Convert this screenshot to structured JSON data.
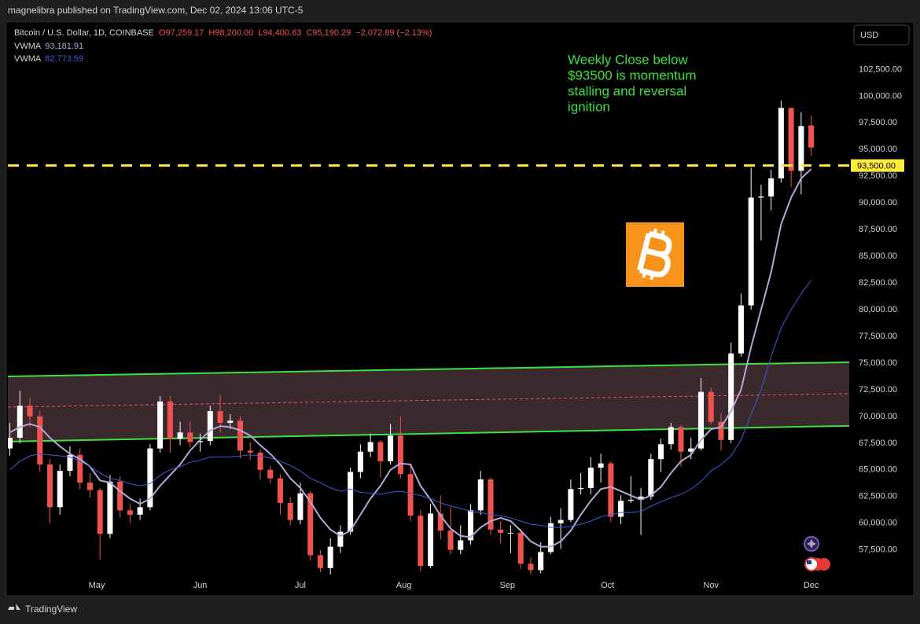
{
  "chart_data": {
    "type": "candlestick",
    "header": "magnelibra published on TradingView.com, Dec 02, 2024 13:06 UTC-5",
    "title": "Bitcoin / U.S. Dollar, 1D, COINBASE",
    "last_labels": [
      "O97,259.17",
      "H98,200.00",
      "L94,400.63",
      "C95,190.29"
    ],
    "change_label": "−2,072.89 (−2.13%)",
    "currency": "USD",
    "footer": "TradingView",
    "up_color": "#ffffff",
    "down_color": "#ef5350",
    "ohlc": [
      [
        67000,
        69400,
        66300,
        68000
      ],
      [
        68000,
        72400,
        67500,
        71000
      ],
      [
        71000,
        71700,
        69000,
        70000
      ],
      [
        70000,
        70500,
        64800,
        65500
      ],
      [
        65500,
        66000,
        60000,
        61500
      ],
      [
        61500,
        65500,
        60800,
        64900
      ],
      [
        64900,
        67200,
        64400,
        66400
      ],
      [
        66400,
        67000,
        63200,
        63800
      ],
      [
        63800,
        64700,
        62400,
        63100
      ],
      [
        63100,
        63300,
        56600,
        59000
      ],
      [
        59000,
        64500,
        58600,
        63900
      ],
      [
        63900,
        64400,
        60500,
        61200
      ],
      [
        61200,
        61800,
        60000,
        60800
      ],
      [
        60800,
        62300,
        60300,
        61500
      ],
      [
        61500,
        67400,
        61200,
        67000
      ],
      [
        67000,
        71900,
        66600,
        71400
      ],
      [
        71400,
        71900,
        66600,
        67900
      ],
      [
        67900,
        69500,
        67300,
        68500
      ],
      [
        68500,
        69500,
        67100,
        67600
      ],
      [
        67600,
        68400,
        66700,
        67700
      ],
      [
        67700,
        71000,
        67300,
        70500
      ],
      [
        70500,
        72000,
        68500,
        69400
      ],
      [
        69400,
        70200,
        68800,
        69600
      ],
      [
        69600,
        70000,
        66100,
        66800
      ],
      [
        66800,
        67600,
        65900,
        66600
      ],
      [
        66600,
        66900,
        64100,
        65000
      ],
      [
        65000,
        65400,
        63700,
        64200
      ],
      [
        64200,
        64600,
        60800,
        61900
      ],
      [
        61900,
        62400,
        59800,
        60300
      ],
      [
        60300,
        63800,
        59900,
        62800
      ],
      [
        62800,
        63000,
        56500,
        57000
      ],
      [
        57000,
        57500,
        55400,
        55800
      ],
      [
        55800,
        58600,
        55200,
        57800
      ],
      [
        57800,
        59800,
        57200,
        59200
      ],
      [
        59200,
        65200,
        58900,
        64800
      ],
      [
        64800,
        67400,
        64200,
        66700
      ],
      [
        66700,
        68400,
        66200,
        67600
      ],
      [
        67600,
        67800,
        64300,
        65800
      ],
      [
        65800,
        69300,
        65500,
        68200
      ],
      [
        68200,
        70000,
        64200,
        64600
      ],
      [
        64600,
        65600,
        60200,
        60700
      ],
      [
        60700,
        61200,
        55500,
        56000
      ],
      [
        56000,
        61800,
        55800,
        60900
      ],
      [
        60900,
        62600,
        58500,
        59300
      ],
      [
        59300,
        61500,
        57100,
        57500
      ],
      [
        57500,
        59800,
        57100,
        58400
      ],
      [
        58400,
        61800,
        58000,
        61200
      ],
      [
        61200,
        64900,
        60800,
        64100
      ],
      [
        64100,
        64300,
        58900,
        59400
      ],
      [
        59400,
        60200,
        58100,
        59100
      ],
      [
        59100,
        59800,
        57200,
        59100
      ],
      [
        59100,
        59500,
        55700,
        56200
      ],
      [
        56200,
        56800,
        55200,
        55600
      ],
      [
        55600,
        58200,
        55300,
        57300
      ],
      [
        57300,
        60600,
        57100,
        60000
      ],
      [
        60000,
        61400,
        57600,
        60300
      ],
      [
        60300,
        64100,
        60100,
        63200
      ],
      [
        63200,
        64700,
        62700,
        63300
      ],
      [
        63300,
        66200,
        62700,
        65200
      ],
      [
        65200,
        66500,
        63800,
        65600
      ],
      [
        65600,
        65800,
        60100,
        60600
      ],
      [
        60600,
        62600,
        59900,
        62100
      ],
      [
        62100,
        64400,
        61900,
        62200
      ],
      [
        62200,
        63300,
        58900,
        62500
      ],
      [
        62500,
        66500,
        62200,
        66000
      ],
      [
        66000,
        67900,
        64800,
        67400
      ],
      [
        67400,
        69400,
        66900,
        69000
      ],
      [
        69000,
        69200,
        65300,
        66700
      ],
      [
        66700,
        68000,
        66000,
        67000
      ],
      [
        67000,
        73600,
        66800,
        72300
      ],
      [
        72300,
        72700,
        69200,
        69500
      ],
      [
        69500,
        70300,
        66800,
        67800
      ],
      [
        67800,
        76900,
        67500,
        75900
      ],
      [
        75900,
        81500,
        75600,
        80400
      ],
      [
        80400,
        93300,
        80000,
        90500
      ],
      [
        90500,
        91700,
        86500,
        90600
      ],
      [
        90600,
        93100,
        89300,
        92300
      ],
      [
        92300,
        99600,
        91900,
        98900
      ],
      [
        98900,
        98900,
        91500,
        93000
      ],
      [
        93000,
        98500,
        90800,
        97200
      ],
      [
        97259.17,
        98200,
        94400.63,
        95190.29
      ]
    ],
    "series": [
      {
        "name": "VWMA",
        "last_label": "93,181.91",
        "color": "#b7a6d6",
        "values": [
          68500,
          69000,
          69300,
          69000,
          68000,
          67200,
          66500,
          66000,
          65300,
          64000,
          63800,
          63000,
          62300,
          61800,
          62300,
          63500,
          64500,
          65500,
          66800,
          67800,
          68700,
          69100,
          69000,
          68700,
          68200,
          67300,
          66500,
          65500,
          64200,
          63300,
          62000,
          60500,
          59400,
          58800,
          59300,
          60800,
          62300,
          63500,
          65000,
          65600,
          65500,
          63500,
          62200,
          60700,
          59500,
          58800,
          58700,
          59600,
          60200,
          60500,
          60200,
          59300,
          58300,
          57800,
          57800,
          58300,
          59300,
          60800,
          62100,
          63200,
          63400,
          63000,
          62600,
          62200,
          62600,
          63400,
          64700,
          65800,
          66400,
          67800,
          68800,
          69000,
          70500,
          72500,
          76500,
          80000,
          83500,
          88000,
          90500,
          92300,
          93181.91
        ]
      },
      {
        "name": "VWMA",
        "last_label": "82,773.59",
        "color": "#3f5bd9",
        "values": [
          65000,
          65800,
          66300,
          66500,
          66400,
          66300,
          66200,
          65800,
          65300,
          64700,
          64200,
          64000,
          63700,
          63500,
          63700,
          64500,
          65000,
          65300,
          65700,
          65900,
          66200,
          66200,
          66200,
          66300,
          66400,
          66300,
          66100,
          65800,
          65400,
          64900,
          64200,
          63800,
          63300,
          63000,
          63200,
          62900,
          62800,
          62700,
          62900,
          63000,
          62800,
          62600,
          62300,
          61900,
          61600,
          61400,
          61100,
          61000,
          60800,
          60700,
          60500,
          60200,
          59900,
          59800,
          59600,
          59600,
          59700,
          59900,
          60200,
          60600,
          60800,
          61000,
          61000,
          61100,
          61600,
          62000,
          62400,
          62700,
          63200,
          63900,
          64900,
          65500,
          66300,
          67800,
          70200,
          72500,
          75600,
          78300,
          80000,
          81500,
          82773.59
        ]
      }
    ],
    "xlim": [
      -0.2,
      83.8
    ],
    "xticks": [
      {
        "value": 8.67,
        "label": "May"
      },
      {
        "value": 19,
        "label": "Jun"
      },
      {
        "value": 29,
        "label": "Jul"
      },
      {
        "value": 39.33,
        "label": "Aug"
      },
      {
        "value": 49.67,
        "label": "Sep"
      },
      {
        "value": 59.67,
        "label": "Oct"
      },
      {
        "value": 70,
        "label": "Nov"
      },
      {
        "value": 80,
        "label": "Dec"
      }
    ],
    "ylim": [
      54900,
      106800
    ],
    "yticks": [
      {
        "value": 57500,
        "label": "57,500.00"
      },
      {
        "value": 60000,
        "label": "60,000.00"
      },
      {
        "value": 62500,
        "label": "62,500.00"
      },
      {
        "value": 65000,
        "label": "65,000.00"
      },
      {
        "value": 67500,
        "label": "67,500.00"
      },
      {
        "value": 70000,
        "label": "70,000.00"
      },
      {
        "value": 72500,
        "label": "72,500.00"
      },
      {
        "value": 75000,
        "label": "75,000.00"
      },
      {
        "value": 77500,
        "label": "77,500.00"
      },
      {
        "value": 80000,
        "label": "80,000.00"
      },
      {
        "value": 82500,
        "label": "82,500.00"
      },
      {
        "value": 85000,
        "label": "85,000.00"
      },
      {
        "value": 87500,
        "label": "87,500.00"
      },
      {
        "value": 90000,
        "label": "90,000.00"
      },
      {
        "value": 92500,
        "label": "92,500.00"
      },
      {
        "value": 95000,
        "label": "95,000.00"
      },
      {
        "value": 97500,
        "label": "97,500.00"
      },
      {
        "value": 100000,
        "label": "100,000.00"
      },
      {
        "value": 102500,
        "label": "102,500.00"
      }
    ],
    "level": {
      "value": 93500,
      "label": "93,500.00",
      "color": "#ffeb3b"
    },
    "channel": {
      "upper": [
        [
          -0.2,
          73750
        ],
        [
          83.8,
          75074
        ]
      ],
      "lower": [
        [
          -0.2,
          67647
        ],
        [
          83.8,
          69118
        ]
      ],
      "mid": [
        [
          -0.2,
          70882
        ],
        [
          83.8,
          72132
        ]
      ],
      "line_color": "#3ee03e",
      "mid_color": "#e5506a",
      "fill": "#3a2a2e"
    },
    "annotation": {
      "lines": [
        "Weekly Close below",
        "$93500 is momentum",
        "stalling and reversal",
        "ignition"
      ],
      "color": "#3ee03e"
    }
  }
}
